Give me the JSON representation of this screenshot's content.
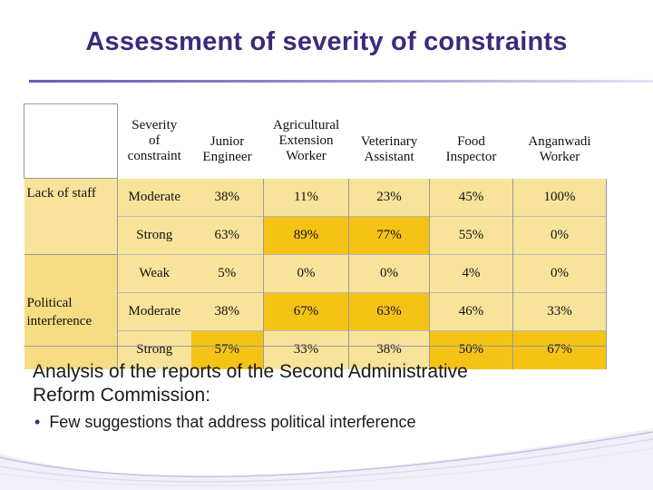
{
  "slide": {
    "title": "Assessment of severity of constraints"
  },
  "table": {
    "headers": {
      "severity": [
        "Severity",
        "of",
        "constraint"
      ],
      "junior_engineer": [
        "Junior",
        "Engineer"
      ],
      "agri_worker": [
        "Agricultural",
        "Extension",
        "Worker"
      ],
      "vet_assistant": [
        "Veterinary",
        "Assistant"
      ],
      "food_inspector": [
        "Food",
        "Inspector"
      ],
      "anganwadi_worker": [
        "Anganwadi",
        "Worker"
      ]
    },
    "groups": {
      "lack_of_staff": "Lack of staff",
      "political_interference": [
        "Political",
        "interference"
      ]
    },
    "rows": [
      {
        "level": "Moderate",
        "values": [
          "38%",
          "11%",
          "23%",
          "45%",
          "100%"
        ]
      },
      {
        "level": "Strong",
        "values": [
          "63%",
          "89%",
          "77%",
          "55%",
          "0%"
        ]
      },
      {
        "level": "Weak",
        "values": [
          "5%",
          "0%",
          "0%",
          "4%",
          "0%"
        ]
      },
      {
        "level": "Moderate",
        "values": [
          "38%",
          "67%",
          "63%",
          "46%",
          "33%"
        ]
      },
      {
        "level": "Strong",
        "values": [
          "57%",
          "33%",
          "38%",
          "50%",
          "67%"
        ]
      }
    ]
  },
  "analysis": {
    "text_line1": "Analysis of the reports of the Second Administrative",
    "text_line2": "Reform Commission:",
    "bullet": "Few suggestions that address political interference"
  },
  "colors": {
    "title": "#3d2a7a",
    "row_fill": "#f8e39b",
    "group_fill": "#f6dc82",
    "highlight": "#f5c316"
  }
}
